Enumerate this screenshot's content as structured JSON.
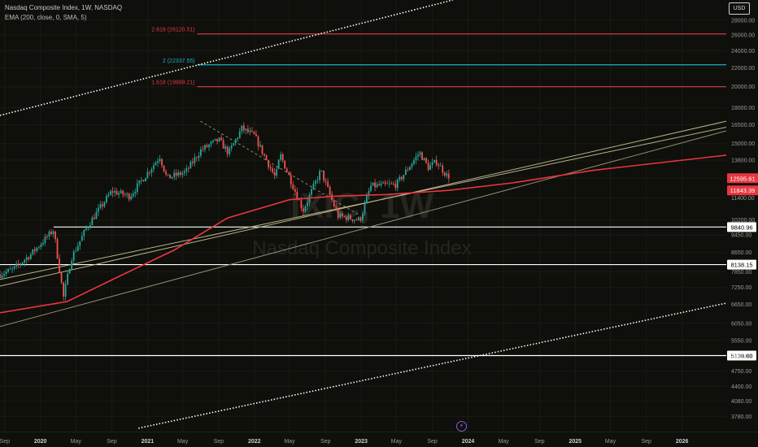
{
  "header": {
    "title": "Nasdaq Composite Index, 1W, NASDAQ",
    "indicator": "EMA (200, close, 0, SMA, 5)"
  },
  "currency_button": "USD",
  "watermark": {
    "ticker": "IXIC, 1W",
    "name": "Nasdaq Composite Index"
  },
  "colors": {
    "background": "#0f0f0b",
    "up": "#26a69a",
    "down": "#ef5350",
    "ema": "#e8373f",
    "fib_red": "#e23a45",
    "fib_cyan": "#1fb2c4",
    "level_white": "#ffffff",
    "trend_olive": "#b9b38a",
    "axis_text": "#9a9a9a"
  },
  "chart_data": {
    "type": "candlestick",
    "title": "Nasdaq Composite Index, 1W, NASDAQ",
    "y_scale": "log",
    "ylim": [
      3500,
      31000
    ],
    "y_ticks": [
      3780,
      4080,
      4400,
      4750,
      5130,
      5550,
      6050,
      6650,
      7250,
      7850,
      8650,
      9450,
      10200,
      11400,
      12600,
      13800,
      15000,
      16500,
      18000,
      20000,
      22000,
      24000,
      26000,
      28000
    ],
    "x_ticks": [
      {
        "label": "Sep",
        "date": "2019-09-01",
        "bold": false
      },
      {
        "label": "2020",
        "date": "2020-01-01",
        "bold": true
      },
      {
        "label": "May",
        "date": "2020-05-01",
        "bold": false
      },
      {
        "label": "Sep",
        "date": "2020-09-01",
        "bold": false
      },
      {
        "label": "2021",
        "date": "2021-01-01",
        "bold": true
      },
      {
        "label": "May",
        "date": "2021-05-01",
        "bold": false
      },
      {
        "label": "Sep",
        "date": "2021-09-01",
        "bold": false
      },
      {
        "label": "2022",
        "date": "2022-01-01",
        "bold": true
      },
      {
        "label": "May",
        "date": "2022-05-01",
        "bold": false
      },
      {
        "label": "Sep",
        "date": "2022-09-01",
        "bold": false
      },
      {
        "label": "2023",
        "date": "2023-01-01",
        "bold": true
      },
      {
        "label": "May",
        "date": "2023-05-01",
        "bold": false
      },
      {
        "label": "Sep",
        "date": "2023-09-01",
        "bold": false
      },
      {
        "label": "2024",
        "date": "2024-01-01",
        "bold": true
      },
      {
        "label": "May",
        "date": "2024-05-01",
        "bold": false
      },
      {
        "label": "Sep",
        "date": "2024-09-01",
        "bold": false
      },
      {
        "label": "2025",
        "date": "2025-01-01",
        "bold": true
      },
      {
        "label": "May",
        "date": "2025-05-01",
        "bold": false
      },
      {
        "label": "Sep",
        "date": "2025-09-01",
        "bold": false
      },
      {
        "label": "2026",
        "date": "2026-01-01",
        "bold": true
      }
    ],
    "date_range": [
      "2019-08-16",
      "2026-06-01"
    ],
    "close_path": [
      [
        "2019-08-16",
        7750
      ],
      [
        "2019-10-01",
        7950
      ],
      [
        "2019-12-01",
        8600
      ],
      [
        "2020-02-15",
        9700
      ],
      [
        "2020-03-20",
        6900
      ],
      [
        "2020-04-15",
        8400
      ],
      [
        "2020-06-10",
        9900
      ],
      [
        "2020-09-01",
        11800
      ],
      [
        "2020-11-01",
        11500
      ],
      [
        "2021-02-12",
        14050
      ],
      [
        "2021-03-08",
        12600
      ],
      [
        "2021-05-12",
        13000
      ],
      [
        "2021-07-01",
        14500
      ],
      [
        "2021-09-01",
        15300
      ],
      [
        "2021-10-05",
        14300
      ],
      [
        "2021-11-19",
        16200
      ],
      [
        "2022-01-01",
        15600
      ],
      [
        "2022-03-14",
        12600
      ],
      [
        "2022-03-30",
        14200
      ],
      [
        "2022-06-16",
        10700
      ],
      [
        "2022-08-16",
        13100
      ],
      [
        "2022-10-13",
        10400
      ],
      [
        "2022-12-28",
        10200
      ],
      [
        "2023-02-02",
        12100
      ],
      [
        "2023-05-01",
        12200
      ],
      [
        "2023-07-19",
        14350
      ],
      [
        "2023-08-18",
        13300
      ],
      [
        "2023-09-15",
        13700
      ],
      [
        "2023-10-27",
        12595.61
      ]
    ],
    "ema200": [
      [
        "2019-08-16",
        6380
      ],
      [
        "2020-04-01",
        6750
      ],
      [
        "2020-10-01",
        7700
      ],
      [
        "2021-04-01",
        8750
      ],
      [
        "2021-10-01",
        10300
      ],
      [
        "2022-05-01",
        11300
      ],
      [
        "2022-10-01",
        11500
      ],
      [
        "2023-04-01",
        11600
      ],
      [
        "2023-10-27",
        11843.39
      ],
      [
        "2024-06-01",
        12300
      ],
      [
        "2025-03-01",
        13100
      ],
      [
        "2026-06-01",
        14150
      ]
    ],
    "horizontal_levels": [
      {
        "value": 26120.51,
        "label": "2.618 (26120.51)",
        "kind": "fib",
        "start": "2021-06-20"
      },
      {
        "value": 22337.55,
        "label": "2 (22337.55)",
        "kind": "fib",
        "start": "2021-06-20"
      },
      {
        "value": 19999.21,
        "label": "1.618 (19999.21)",
        "kind": "fib",
        "start": "2021-06-20"
      },
      {
        "value": 9840.96,
        "label": "9840.96",
        "kind": "level",
        "start": "2020-02-15"
      },
      {
        "value": 8138.15,
        "label": "8138.15",
        "kind": "level",
        "start": "2019-08-16"
      },
      {
        "value": 5139.6,
        "label": "5139.60",
        "kind": "level",
        "start": "2019-08-16"
      }
    ],
    "price_tags": [
      {
        "value": 12595.61,
        "label": "12595.61",
        "color": "#e8373f"
      },
      {
        "value": 11843.39,
        "label": "11843.39",
        "color": "#e8373f"
      }
    ],
    "trend_lines": [
      {
        "from": [
          "2019-08-16",
          17300
        ],
        "to": [
          "2023-11-10",
          31000
        ],
        "style": "dotted",
        "color": "#ffffff"
      },
      {
        "from": [
          "2020-12-01",
          3560
        ],
        "to": [
          "2026-06-01",
          6700
        ],
        "style": "dotted",
        "color": "#ffffff"
      },
      {
        "from": [
          "2019-08-16",
          7300
        ],
        "to": [
          "2026-06-01",
          16800
        ],
        "style": "solid",
        "color": "#b9b38a"
      },
      {
        "from": [
          "2019-08-16",
          7550
        ],
        "to": [
          "2026-06-01",
          16300
        ],
        "style": "solid",
        "color": "#b9b38a"
      },
      {
        "from": [
          "2019-08-16",
          5950
        ],
        "to": [
          "2026-06-01",
          16000
        ],
        "style": "solid",
        "color": "#8f8a6d"
      },
      {
        "from": [
          "2021-07-01",
          16800
        ],
        "to": [
          "2022-12-20",
          10500
        ],
        "style": "dashed",
        "color": "#8f8a6d"
      }
    ]
  }
}
